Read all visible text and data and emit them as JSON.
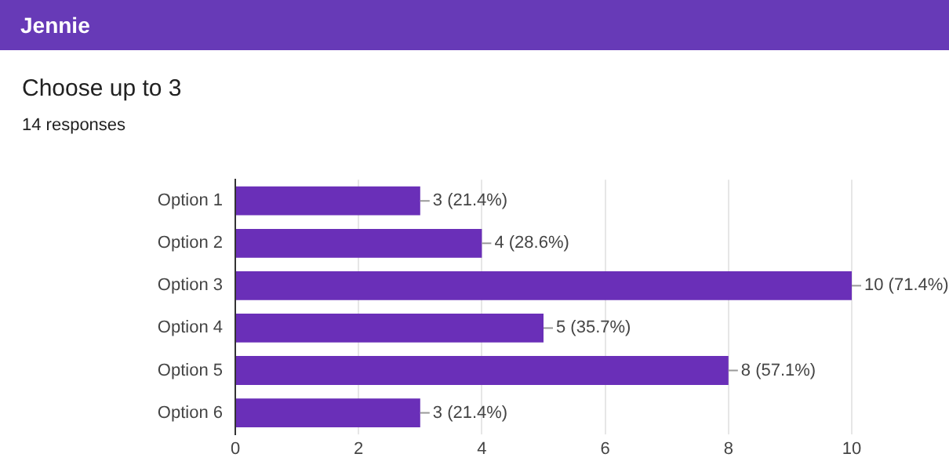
{
  "chart_data": {
    "type": "bar",
    "orientation": "horizontal",
    "title": "Jennie",
    "subtitle": "Choose up to 3",
    "annotations": [
      "14 responses"
    ],
    "categories": [
      "Option 1",
      "Option 2",
      "Option 3",
      "Option 4",
      "Option 5",
      "Option 6"
    ],
    "values": [
      3,
      4,
      10,
      5,
      8,
      3
    ],
    "value_labels": [
      "3 (21.4%)",
      "4 (28.6%)",
      "10 (71.4%)",
      "5 (35.7%)",
      "8 (57.1%)",
      "3 (21.4%)"
    ],
    "color": "#6a2fb8",
    "xlim": [
      0,
      10
    ],
    "xticks": [
      0,
      2,
      4,
      6,
      8,
      10
    ],
    "grid": "x",
    "legend": false
  }
}
